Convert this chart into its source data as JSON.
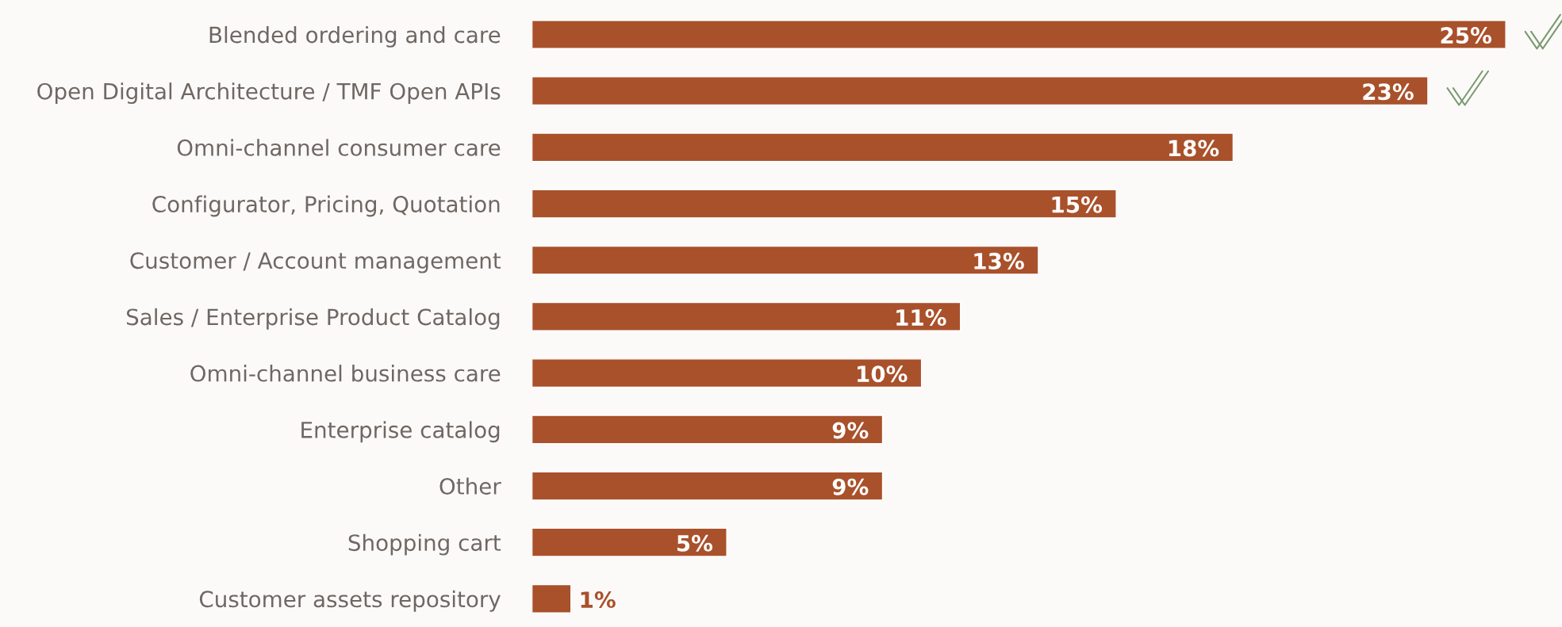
{
  "chart_data": {
    "type": "bar",
    "orientation": "horizontal",
    "categories": [
      "Blended ordering and care",
      "Open Digital Architecture / TMF Open APIs",
      "Omni-channel consumer care",
      "Configurator, Pricing, Quotation",
      "Customer / Account management",
      "Sales / Enterprise Product Catalog",
      "Omni-channel business care",
      "Enterprise catalog",
      "Other",
      "Shopping cart",
      "Customer assets repository"
    ],
    "values": [
      25,
      23,
      18,
      15,
      13,
      11,
      10,
      9,
      9,
      5,
      1
    ],
    "value_labels": [
      "25%",
      "23%",
      "18%",
      "15%",
      "13%",
      "11%",
      "10%",
      "9%",
      "9%",
      "5%",
      "1%"
    ],
    "color": "#a9512b",
    "xlim": [
      0,
      25
    ],
    "tick_labels": "y",
    "grid": false,
    "legend": false
  }
}
